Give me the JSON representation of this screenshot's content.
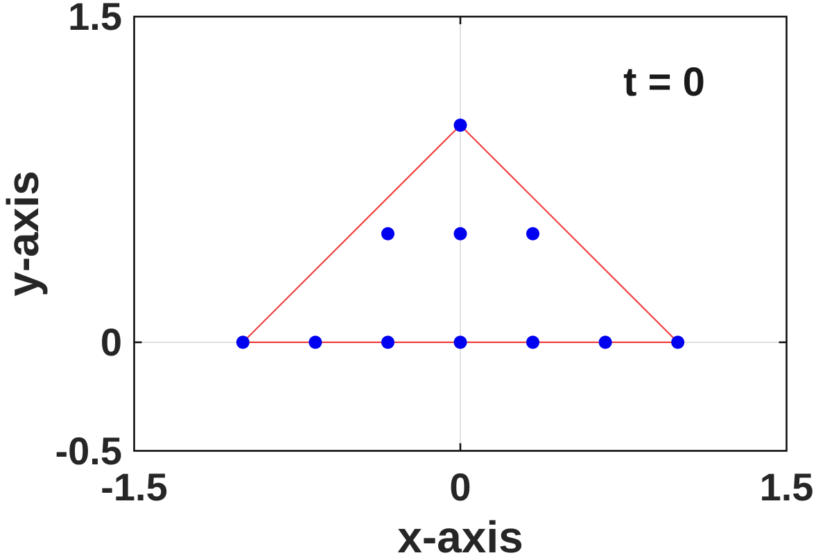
{
  "chart_data": {
    "type": "scatter",
    "title": "",
    "xlabel": "x-axis",
    "ylabel": "y-axis",
    "annotation": "t = 0",
    "xlim": [
      -1.5,
      1.5
    ],
    "ylim": [
      -0.5,
      1.5
    ],
    "xticks": [
      {
        "v": -1.5,
        "label": "-1.5"
      },
      {
        "v": 0,
        "label": "0"
      },
      {
        "v": 1.5,
        "label": "1.5"
      }
    ],
    "yticks": [
      {
        "v": -0.5,
        "label": "-0.5"
      },
      {
        "v": 0,
        "label": "0"
      },
      {
        "v": 1.5,
        "label": "1.5"
      }
    ],
    "grid_x": [
      0
    ],
    "grid_y": [
      0
    ],
    "grid_on": true,
    "legend": "none",
    "series": [
      {
        "name": "triangle-boundary",
        "type": "line",
        "closed": true,
        "color": "#f04040",
        "points": [
          [
            -1,
            0
          ],
          [
            0,
            1
          ],
          [
            1,
            0
          ]
        ]
      },
      {
        "name": "particles",
        "type": "scatter",
        "marker": "filled-circle",
        "color": "#0000f0",
        "points": [
          [
            -1,
            0
          ],
          [
            -0.6667,
            0
          ],
          [
            -0.3333,
            0
          ],
          [
            0,
            0
          ],
          [
            0.3333,
            0
          ],
          [
            0.6667,
            0
          ],
          [
            1,
            0
          ],
          [
            -0.3333,
            0.5
          ],
          [
            0,
            0.5
          ],
          [
            0.3333,
            0.5
          ],
          [
            0,
            1
          ]
        ]
      }
    ],
    "styles": {
      "background": "#ffffff",
      "grid_color": "#dcdcdc",
      "axis_color": "#111111",
      "text_color": "#262626"
    }
  }
}
